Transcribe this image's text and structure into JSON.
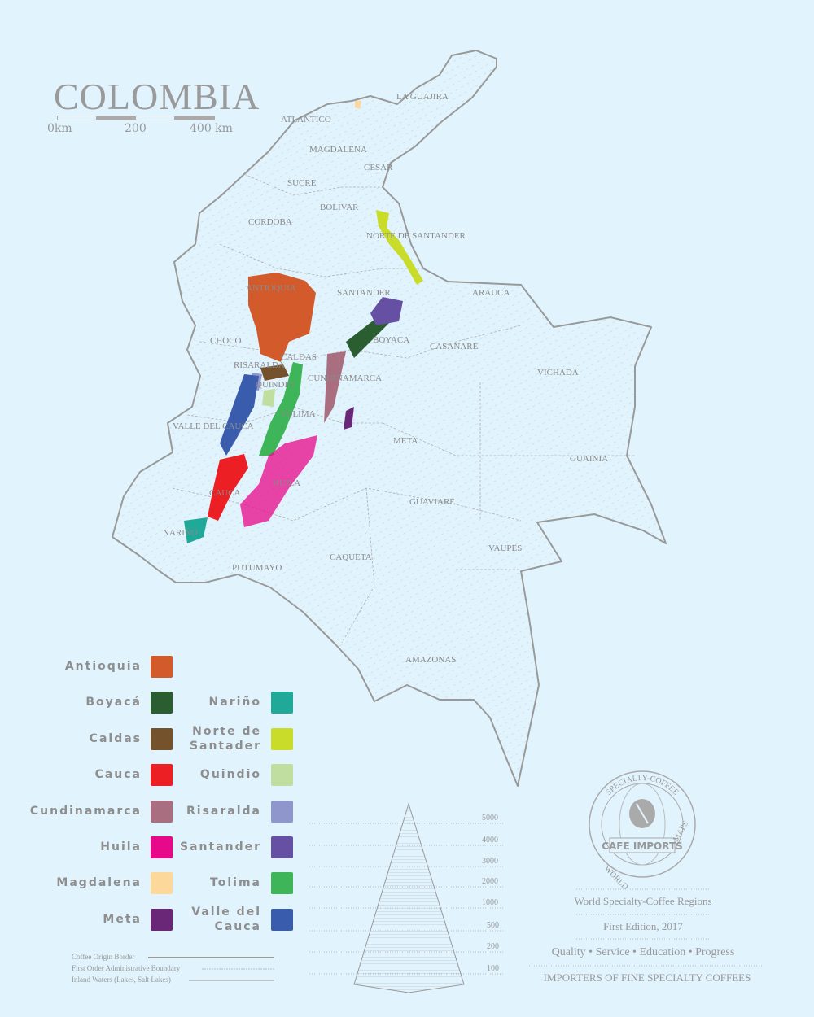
{
  "title": "COLOMBIA",
  "scale_bar": {
    "labels": [
      "0km",
      "200",
      "400 km"
    ]
  },
  "regions": [
    {
      "name": "LA GUAJIRA"
    },
    {
      "name": "ATLANTICO"
    },
    {
      "name": "MAGDALENA"
    },
    {
      "name": "CESAR"
    },
    {
      "name": "SUCRE"
    },
    {
      "name": "BOLIVAR"
    },
    {
      "name": "CORDOBA"
    },
    {
      "name": "NORTE DE SANTANDER"
    },
    {
      "name": "ANTIOQUIA"
    },
    {
      "name": "SANTANDER"
    },
    {
      "name": "ARAUCA"
    },
    {
      "name": "CHOCO"
    },
    {
      "name": "BOYACA"
    },
    {
      "name": "CASANARE"
    },
    {
      "name": "CALDAS"
    },
    {
      "name": "RISARALDA"
    },
    {
      "name": "CUNDINAMARCA"
    },
    {
      "name": "QUINDIO"
    },
    {
      "name": "VICHADA"
    },
    {
      "name": "TOLIMA"
    },
    {
      "name": "VALLE DEL CAUCA"
    },
    {
      "name": "META"
    },
    {
      "name": "GUAINIA"
    },
    {
      "name": "HUILA"
    },
    {
      "name": "CAUCA"
    },
    {
      "name": "GUAVIARE"
    },
    {
      "name": "NARIÑO"
    },
    {
      "name": "VAUPES"
    },
    {
      "name": "CAQUETA"
    },
    {
      "name": "PUTUMAYO"
    },
    {
      "name": "AMAZONAS"
    }
  ],
  "legend": {
    "left": [
      {
        "label": "Antioquia",
        "color": "#d35a2a"
      },
      {
        "label": "Boyacá",
        "color": "#2a5e30"
      },
      {
        "label": "Caldas",
        "color": "#74522b"
      },
      {
        "label": "Cauca",
        "color": "#ec1f24"
      },
      {
        "label": "Cundinamarca",
        "color": "#aa6e81"
      },
      {
        "label": "Huila",
        "color": "#e8088a"
      },
      {
        "label": "Magdalena",
        "color": "#fcd99a"
      },
      {
        "label": "Meta",
        "color": "#6a2778"
      }
    ],
    "right": [
      {
        "label": "Nariño",
        "color": "#20a899"
      },
      {
        "label": "Norte de Santader",
        "color": "#c9dc2a"
      },
      {
        "label": "Quindio",
        "color": "#c0dea0"
      },
      {
        "label": "Risaralda",
        "color": "#8f96cc"
      },
      {
        "label": "Santander",
        "color": "#6650a4"
      },
      {
        "label": "Tolima",
        "color": "#3db558"
      },
      {
        "label": "Valle del Cauca",
        "color": "#3a5cad"
      }
    ]
  },
  "line_legend": [
    "Coffee Origin Border",
    "First Order Administrative Boundary",
    "Inland Waters (Lakes, Salt Lakes)"
  ],
  "elevation_labels": [
    "5000",
    "4000",
    "3000",
    "2000",
    "1000",
    "500",
    "200",
    "100"
  ],
  "logo": {
    "top_text": "SPECIALTY-COFFEE",
    "left_text": "WORLD",
    "right_text": "MAPS",
    "banner": "CAFE IMPORTS"
  },
  "info": {
    "series": "World Specialty-Coffee Regions",
    "edition": "First Edition, 2017",
    "values": "Quality • Service • Education • Progress",
    "tagline": "IMPORTERS OF FINE SPECIALTY COFFEES"
  }
}
